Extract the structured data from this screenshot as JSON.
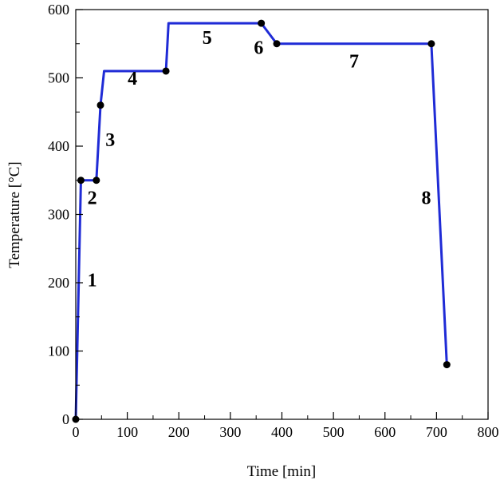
{
  "chart_data": {
    "type": "line",
    "title": "",
    "xlabel": "Time [min]",
    "ylabel": "Temperature [°C]",
    "xlim": [
      0,
      800
    ],
    "ylim": [
      0,
      600
    ],
    "x_ticks": [
      0,
      100,
      200,
      300,
      400,
      500,
      600,
      700,
      800
    ],
    "y_ticks": [
      0,
      100,
      200,
      300,
      400,
      500,
      600
    ],
    "grid": false,
    "line_color": "#1f2bd6",
    "marker_color": "#000000",
    "series": [
      {
        "x": [
          0,
          10,
          40,
          48,
          55,
          175,
          180,
          360,
          390,
          690,
          720
        ],
        "y": [
          0,
          350,
          350,
          460,
          510,
          510,
          580,
          580,
          550,
          550,
          80
        ]
      }
    ],
    "markers": [
      {
        "x": 0,
        "y": 0
      },
      {
        "x": 10,
        "y": 350
      },
      {
        "x": 40,
        "y": 350
      },
      {
        "x": 48,
        "y": 460
      },
      {
        "x": 175,
        "y": 510
      },
      {
        "x": 360,
        "y": 580
      },
      {
        "x": 390,
        "y": 550
      },
      {
        "x": 690,
        "y": 550
      },
      {
        "x": 720,
        "y": 80
      }
    ],
    "segment_labels": [
      {
        "text": "1",
        "x": 32,
        "y": 195
      },
      {
        "text": "2",
        "x": 32,
        "y": 315
      },
      {
        "text": "3",
        "x": 67,
        "y": 400
      },
      {
        "text": "4",
        "x": 110,
        "y": 490
      },
      {
        "text": "5",
        "x": 255,
        "y": 550
      },
      {
        "text": "6",
        "x": 355,
        "y": 535
      },
      {
        "text": "7",
        "x": 540,
        "y": 515
      },
      {
        "text": "8",
        "x": 680,
        "y": 315
      }
    ]
  }
}
